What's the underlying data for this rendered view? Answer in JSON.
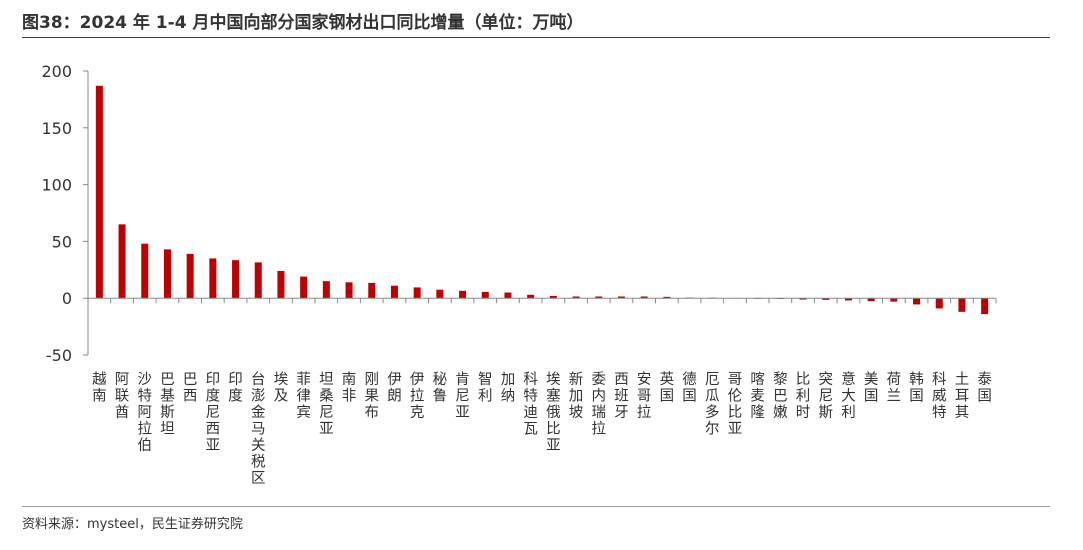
{
  "figure": {
    "title": "图38：2024 年 1-4 月中国向部分国家钢材出口同比增量（单位：万吨）",
    "source": "资料来源：mysteel，民生证券研究院"
  },
  "colors": {
    "bar": "#C00000",
    "axis": "#888888",
    "text": "#333333"
  },
  "chart_data": {
    "type": "bar",
    "title": "2024 年 1-4 月中国向部分国家钢材出口同比增量（单位：万吨）",
    "xlabel": "",
    "ylabel": "",
    "ylim": [
      -50,
      200
    ],
    "yticks": [
      200,
      150,
      100,
      50,
      0,
      -50
    ],
    "grid": false,
    "legend": "none",
    "categories": [
      "越南",
      "阿联酋",
      "沙特阿拉伯",
      "巴基斯坦",
      "巴西",
      "印度尼西亚",
      "印度",
      "台澎金马关税区",
      "埃及",
      "菲律宾",
      "坦桑尼亚",
      "南非",
      "刚果布",
      "伊朗",
      "伊拉克",
      "秘鲁",
      "肯尼亚",
      "智利",
      "加纳",
      "科特迪瓦",
      "埃塞俄比亚",
      "新加坡",
      "委内瑞拉",
      "西班牙",
      "安哥拉",
      "英国",
      "德国",
      "厄瓜多尔",
      "哥伦比亚",
      "喀麦隆",
      "黎巴嫩",
      "比利时",
      "突尼斯",
      "意大利",
      "美国",
      "荷兰",
      "韩国",
      "科威特",
      "土耳其",
      "泰国"
    ],
    "values": [
      187,
      65,
      48,
      43,
      39,
      35,
      33.5,
      31.5,
      24,
      19,
      15,
      14,
      13.5,
      11,
      9.5,
      7.5,
      6.5,
      5.5,
      5,
      3,
      2,
      1.5,
      1.5,
      1.5,
      1.5,
      1.2,
      0.5,
      0.4,
      0.2,
      -0.3,
      -0.7,
      -1.2,
      -1.5,
      -2,
      -2.5,
      -3,
      -5.5,
      -9,
      -12,
      -14
    ]
  }
}
